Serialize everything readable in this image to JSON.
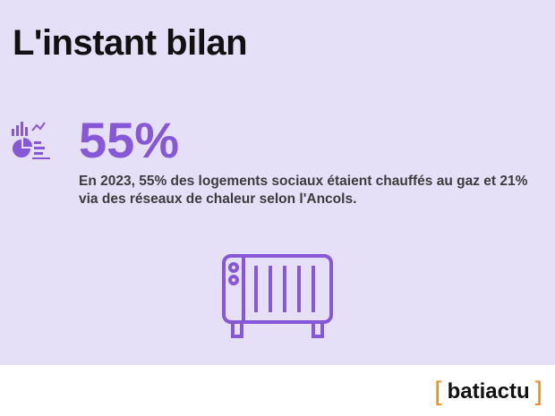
{
  "title": "L'instant bilan",
  "stat": {
    "value": "55%",
    "icon": "analytics-icon",
    "description": "En 2023, 55% des logements sociaux étaient chauffés au gaz et 21% via des réseaux de chaleur selon l'Ancols."
  },
  "illustration": {
    "icon": "radiator-icon"
  },
  "brand": {
    "name": "batiactu",
    "bracket_left": "[",
    "bracket_right": "]",
    "bracket_color": "#f08a24"
  },
  "colors": {
    "background": "#e6dff8",
    "accent": "#8657d6"
  }
}
